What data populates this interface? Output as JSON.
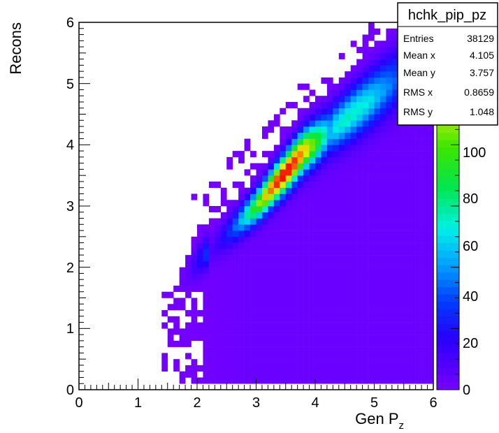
{
  "chart_data": {
    "type": "heatmap",
    "xlabel": "Gen P",
    "xlabel_subscript": "z",
    "ylabel": "Recons",
    "xlim": [
      0,
      6
    ],
    "ylim": [
      0,
      6
    ],
    "x_ticks": [
      "0",
      "1",
      "2",
      "3",
      "4",
      "5",
      "6"
    ],
    "y_ticks": [
      "0",
      "1",
      "2",
      "3",
      "4",
      "5",
      "6"
    ],
    "colorbar": {
      "range": [
        0,
        120
      ],
      "ticks": [
        "0",
        "20",
        "40",
        "60",
        "80",
        "100"
      ]
    },
    "bins": {
      "nx": 60,
      "ny": 60
    },
    "distribution_model": {
      "core_points": [
        [
          1.9,
          2.0
        ],
        [
          3.0,
          3.0
        ],
        [
          3.8,
          3.9
        ],
        [
          4.6,
          4.5
        ],
        [
          5.5,
          5.2
        ],
        [
          6.0,
          5.5
        ]
      ],
      "peak_count": 120,
      "core_sigma": 0.18,
      "tail_below_diagonal": true
    },
    "stats_box": {
      "title": "hchk_pip_pz",
      "rows": [
        {
          "label": "Entries",
          "value": "38129"
        },
        {
          "label": "Mean x",
          "value": "4.105"
        },
        {
          "label": "Mean y",
          "value": "3.757"
        },
        {
          "label": "RMS x",
          "value": "0.8659"
        },
        {
          "label": "RMS y",
          "value": "1.048"
        }
      ]
    }
  }
}
